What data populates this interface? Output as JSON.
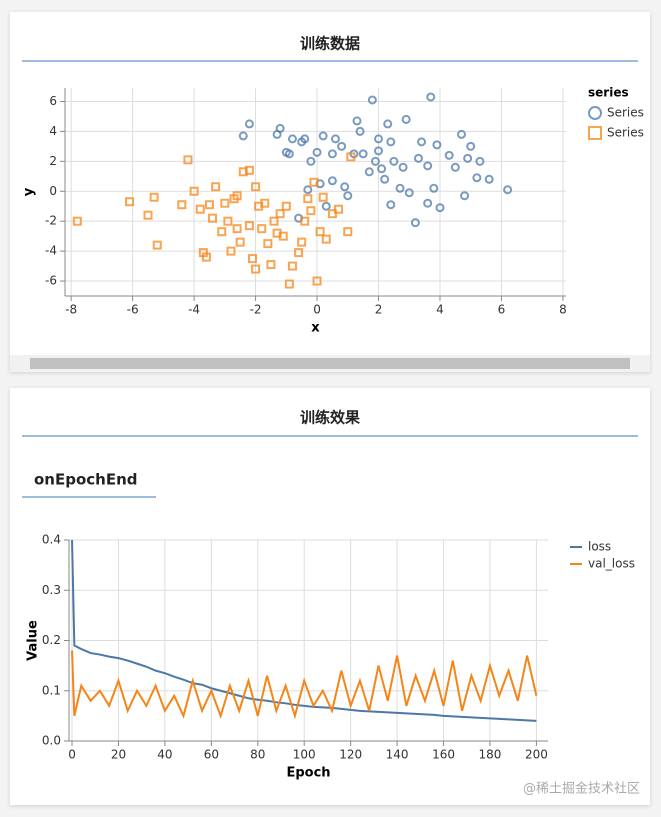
{
  "panel_titles": [
    "训练数据",
    "训练效果"
  ],
  "subtitle": "onEpochEnd",
  "watermark": "@稀土掘金技术社区",
  "chart_data": [
    {
      "type": "scatter",
      "xlabel": "x",
      "ylabel": "y",
      "legend_title": "series",
      "grid": true,
      "xlim": [
        -8.2,
        8.1
      ],
      "ylim": [
        -7,
        6.9
      ],
      "xticks": [
        -8,
        -6,
        -4,
        -2,
        0,
        2,
        4,
        6,
        8
      ],
      "yticks": [
        -6,
        -4,
        -2,
        0,
        2,
        4,
        6
      ],
      "series": [
        {
          "name": "Series",
          "color": "#4c78a8",
          "shape": "circle",
          "x": [
            -2.4,
            -2.2,
            -1.3,
            -1.2,
            -1,
            -0.9,
            -0.8,
            -0.5,
            -0.4,
            -0.2,
            0,
            0.2,
            0.5,
            0.6,
            0.8,
            0.9,
            1.2,
            1.3,
            1.4,
            1.5,
            1.8,
            1.9,
            2.0,
            2.1,
            2.2,
            2.3,
            2.4,
            2.5,
            2.7,
            2.9,
            3.0,
            3.2,
            3.3,
            3.4,
            3.6,
            3.7,
            3.8,
            3.9,
            4.0,
            4.3,
            4.5,
            4.7,
            4.8,
            4.9,
            5.0,
            5.2,
            5.3,
            5.6,
            6.2,
            0.1,
            0.5,
            -0.3,
            1,
            2.4,
            -0.6,
            2.8,
            1.7,
            3.6,
            0.3,
            2.0
          ],
          "y": [
            3.7,
            4.5,
            3.8,
            4.2,
            2.6,
            2.5,
            3.5,
            3.3,
            3.5,
            2.0,
            2.6,
            3.7,
            2.5,
            3.5,
            3.0,
            0.3,
            2.5,
            4.7,
            4.0,
            2.5,
            6.1,
            2.0,
            3.5,
            1.5,
            0.8,
            4.5,
            3.3,
            2.0,
            0.2,
            4.8,
            -0.1,
            -2.1,
            2.2,
            3.3,
            -0.8,
            6.3,
            0.2,
            3.1,
            -1.1,
            2.4,
            1.6,
            3.8,
            -0.3,
            2.2,
            3.0,
            0.9,
            2.0,
            0.8,
            0.1,
            0.5,
            0.7,
            0.1,
            -0.3,
            -0.9,
            -1.8,
            1.6,
            1.3,
            1.7,
            -1.0,
            2.7
          ]
        },
        {
          "name": "Series",
          "color": "#f58518",
          "shape": "square",
          "x": [
            -7.8,
            -6.1,
            -5.5,
            -5.3,
            -5.2,
            -4.2,
            -4.0,
            -3.8,
            -3.7,
            -3.6,
            -3.4,
            -3.3,
            -3.1,
            -3.0,
            -2.8,
            -2.7,
            -2.6,
            -2.5,
            -2.4,
            -2.2,
            -2.2,
            -2.1,
            -2.0,
            -2.0,
            -1.8,
            -1.7,
            -1.5,
            -1.4,
            -1.2,
            -1.1,
            -1.0,
            -0.9,
            -0.8,
            -0.6,
            -0.5,
            -0.4,
            -0.2,
            -0.1,
            0,
            0.1,
            0.3,
            0.5,
            0.7,
            1.0,
            1.1,
            -1.9,
            -2.9,
            -3.5,
            -1.3,
            -0.3,
            -4.4,
            -2.6,
            0.2,
            -1.6
          ],
          "y": [
            -2,
            -0.7,
            -1.6,
            -0.4,
            -3.6,
            2.1,
            0.0,
            -1.2,
            -4.1,
            -4.4,
            -1.8,
            0.3,
            -2.7,
            -0.8,
            -4.0,
            -0.5,
            -2.5,
            -3.4,
            1.3,
            1.4,
            -2.3,
            -4.5,
            -5.2,
            0.3,
            -2.5,
            -0.8,
            -4.9,
            -2.0,
            -1.5,
            -3.0,
            -1.0,
            -6.2,
            -5.0,
            -4.1,
            -3.4,
            -2.0,
            -1.3,
            0.6,
            -6.0,
            -2.7,
            -3.2,
            -1.5,
            -1.2,
            -2.7,
            2.3,
            -1.0,
            -2.0,
            -0.9,
            -2.8,
            -0.5,
            -0.9,
            -0.3,
            -0.4,
            -3.5
          ]
        }
      ]
    },
    {
      "type": "line",
      "xlabel": "Epoch",
      "ylabel": "Value",
      "grid": true,
      "xlim": [
        -1.3,
        205
      ],
      "ylim": [
        0,
        0.4
      ],
      "xticks": [
        0,
        20,
        40,
        60,
        80,
        100,
        120,
        140,
        160,
        180,
        200
      ],
      "yticks": [
        {
          "value": 0,
          "label": "0.0"
        },
        0.1,
        0.2,
        0.3,
        0.4
      ],
      "x": [
        0,
        1,
        4,
        8,
        12,
        16,
        20,
        24,
        28,
        32,
        36,
        40,
        44,
        48,
        52,
        56,
        60,
        64,
        68,
        72,
        76,
        80,
        84,
        88,
        92,
        96,
        100,
        104,
        108,
        112,
        116,
        120,
        124,
        128,
        132,
        136,
        140,
        144,
        148,
        152,
        156,
        160,
        164,
        168,
        172,
        176,
        180,
        184,
        188,
        192,
        196,
        200
      ],
      "series": [
        {
          "name": "loss",
          "color": "#4c78a8",
          "values": [
            0.4,
            0.19,
            0.183,
            0.175,
            0.172,
            0.168,
            0.165,
            0.16,
            0.154,
            0.148,
            0.14,
            0.135,
            0.128,
            0.122,
            0.115,
            0.112,
            0.105,
            0.1,
            0.095,
            0.09,
            0.085,
            0.082,
            0.08,
            0.077,
            0.075,
            0.072,
            0.07,
            0.068,
            0.067,
            0.066,
            0.064,
            0.062,
            0.06,
            0.059,
            0.058,
            0.057,
            0.056,
            0.055,
            0.054,
            0.053,
            0.052,
            0.05,
            0.049,
            0.048,
            0.047,
            0.046,
            0.045,
            0.044,
            0.043,
            0.042,
            0.041,
            0.04
          ]
        },
        {
          "name": "val_loss",
          "color": "#f58518",
          "values": [
            0.18,
            0.05,
            0.11,
            0.08,
            0.1,
            0.07,
            0.12,
            0.06,
            0.1,
            0.07,
            0.11,
            0.06,
            0.09,
            0.05,
            0.12,
            0.06,
            0.1,
            0.05,
            0.11,
            0.06,
            0.12,
            0.05,
            0.13,
            0.06,
            0.11,
            0.05,
            0.12,
            0.07,
            0.1,
            0.06,
            0.14,
            0.07,
            0.12,
            0.06,
            0.15,
            0.08,
            0.17,
            0.07,
            0.13,
            0.08,
            0.14,
            0.07,
            0.16,
            0.06,
            0.13,
            0.08,
            0.15,
            0.09,
            0.14,
            0.08,
            0.17,
            0.09
          ]
        }
      ]
    }
  ]
}
